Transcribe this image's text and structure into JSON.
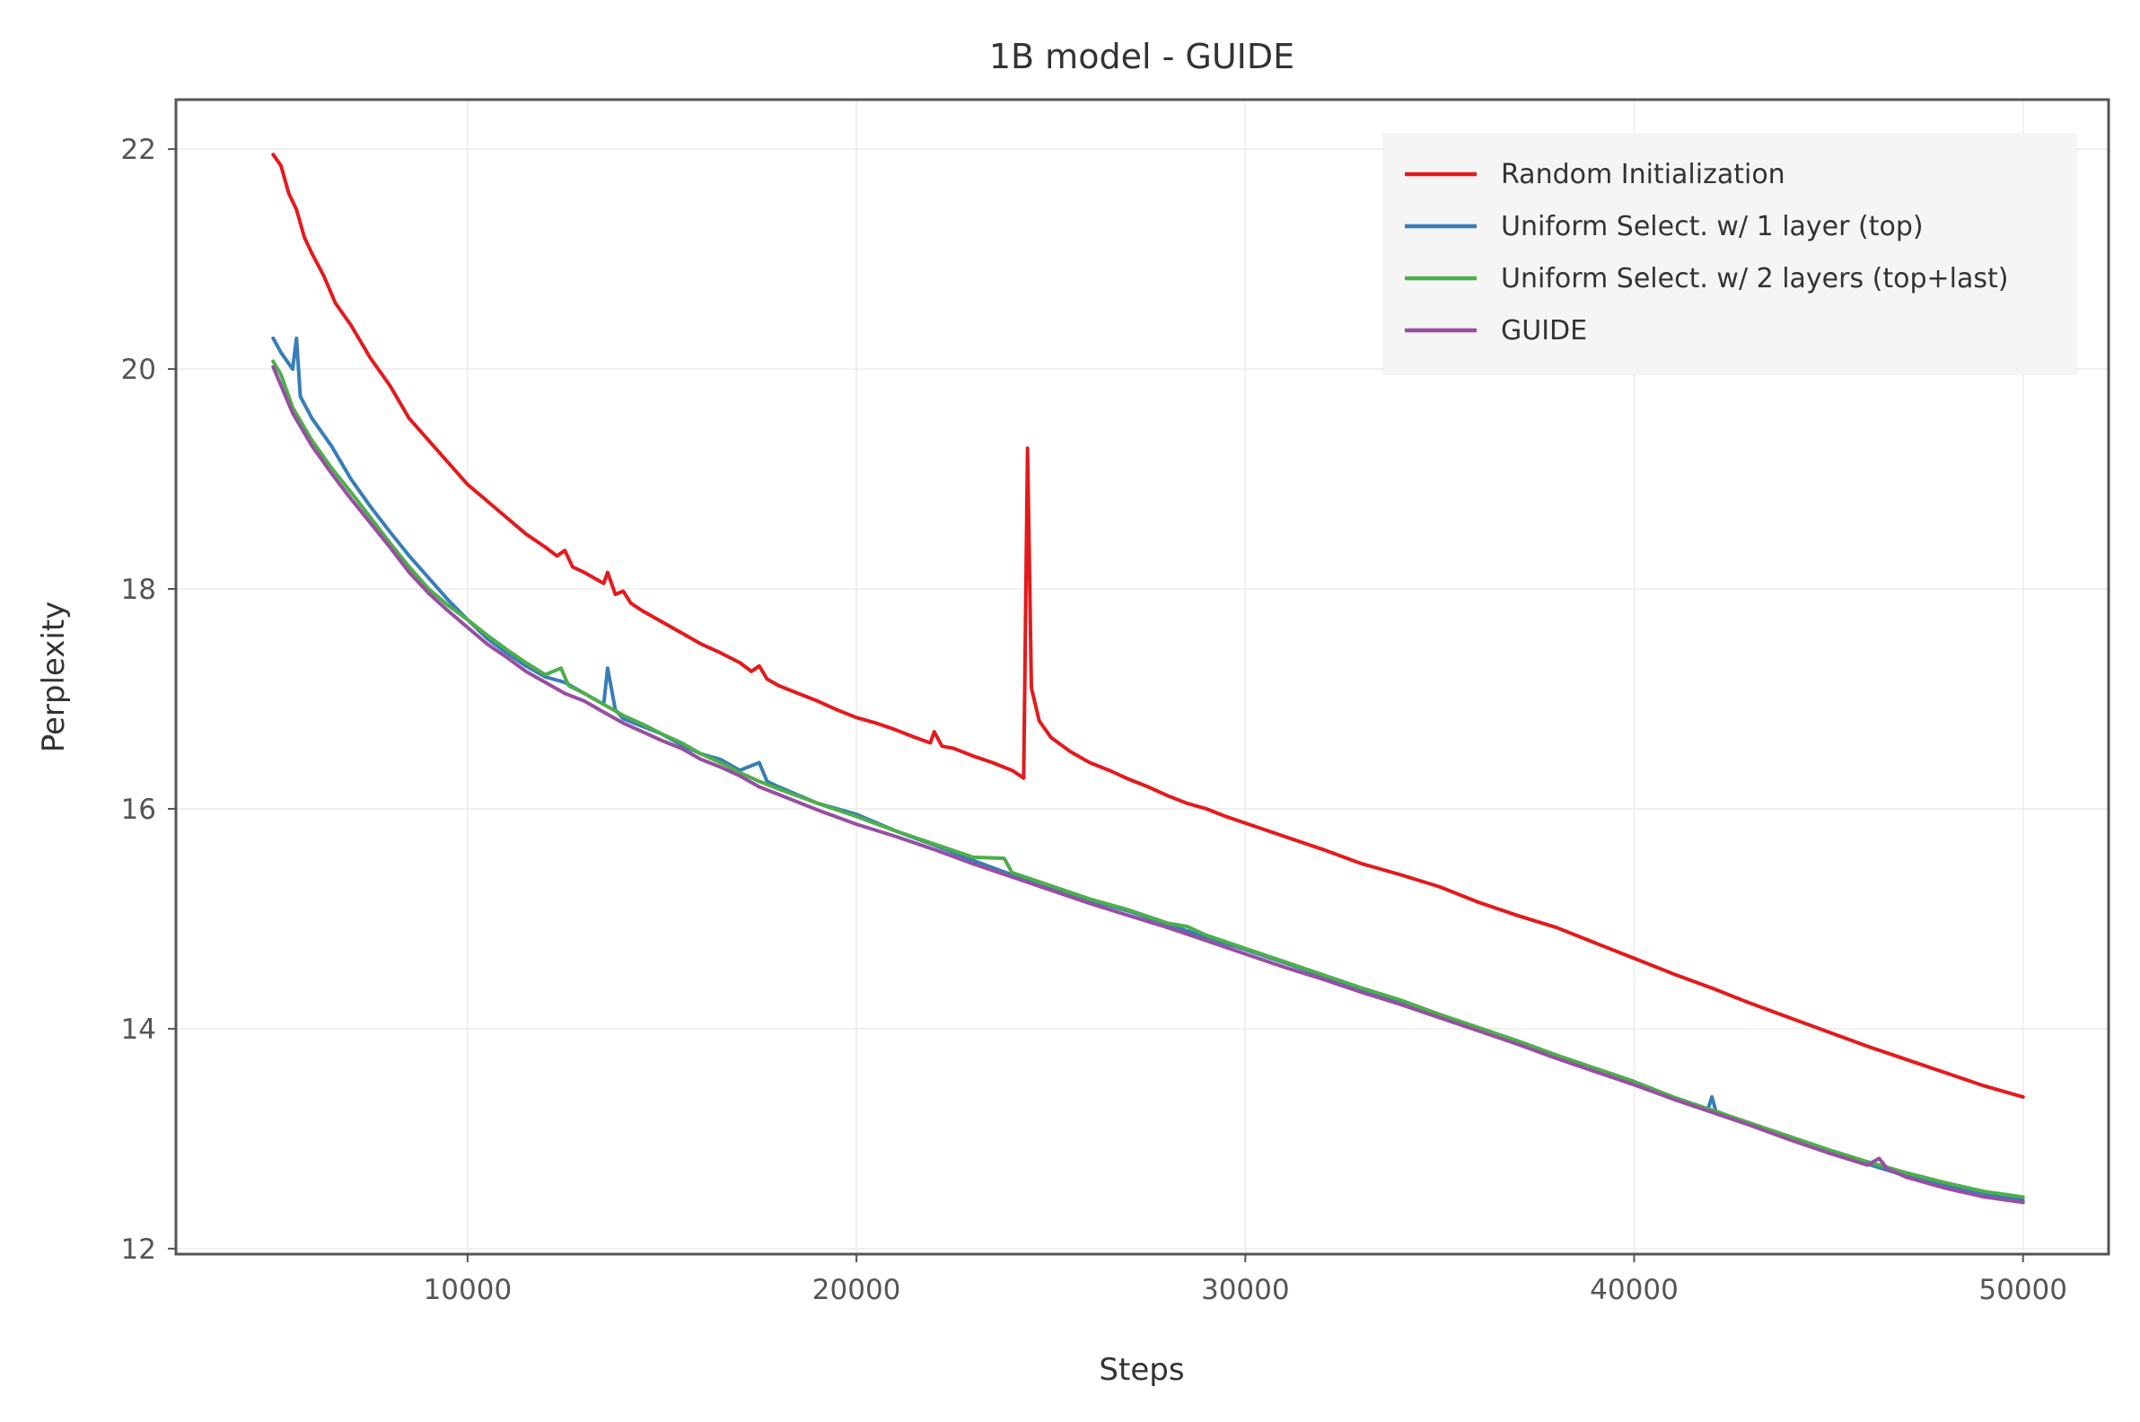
{
  "chart_data": {
    "type": "line",
    "title": "1B model - GUIDE",
    "xlabel": "Steps",
    "ylabel": "Perplexity",
    "xlim": [
      2500,
      52200
    ],
    "ylim": [
      11.95,
      22.45
    ],
    "xticks": [
      10000,
      20000,
      30000,
      40000,
      50000
    ],
    "yticks": [
      12,
      14,
      16,
      18,
      20,
      22
    ],
    "grid": true,
    "legend_position": "top-right",
    "series": [
      {
        "name": "Random Initialization",
        "color": "#e41a1c",
        "points": [
          [
            5000,
            21.95
          ],
          [
            5200,
            21.85
          ],
          [
            5400,
            21.6
          ],
          [
            5600,
            21.45
          ],
          [
            5800,
            21.2
          ],
          [
            6000,
            21.05
          ],
          [
            6300,
            20.85
          ],
          [
            6600,
            20.6
          ],
          [
            7000,
            20.4
          ],
          [
            7500,
            20.1
          ],
          [
            8000,
            19.85
          ],
          [
            8500,
            19.55
          ],
          [
            9000,
            19.35
          ],
          [
            9500,
            19.15
          ],
          [
            10000,
            18.95
          ],
          [
            10500,
            18.8
          ],
          [
            11000,
            18.65
          ],
          [
            11500,
            18.5
          ],
          [
            12000,
            18.38
          ],
          [
            12300,
            18.3
          ],
          [
            12500,
            18.35
          ],
          [
            12700,
            18.2
          ],
          [
            13000,
            18.15
          ],
          [
            13500,
            18.05
          ],
          [
            13600,
            18.15
          ],
          [
            13800,
            17.95
          ],
          [
            14000,
            17.98
          ],
          [
            14200,
            17.87
          ],
          [
            14500,
            17.8
          ],
          [
            15000,
            17.7
          ],
          [
            15500,
            17.6
          ],
          [
            16000,
            17.5
          ],
          [
            16500,
            17.42
          ],
          [
            17000,
            17.33
          ],
          [
            17300,
            17.25
          ],
          [
            17500,
            17.3
          ],
          [
            17700,
            17.18
          ],
          [
            18000,
            17.12
          ],
          [
            18500,
            17.05
          ],
          [
            19000,
            16.98
          ],
          [
            19500,
            16.9
          ],
          [
            20000,
            16.83
          ],
          [
            20500,
            16.78
          ],
          [
            21000,
            16.72
          ],
          [
            21500,
            16.65
          ],
          [
            21900,
            16.6
          ],
          [
            22000,
            16.7
          ],
          [
            22200,
            16.57
          ],
          [
            22500,
            16.55
          ],
          [
            23000,
            16.48
          ],
          [
            23500,
            16.42
          ],
          [
            24000,
            16.35
          ],
          [
            24300,
            16.28
          ],
          [
            24400,
            19.28
          ],
          [
            24500,
            17.1
          ],
          [
            24700,
            16.8
          ],
          [
            25000,
            16.65
          ],
          [
            25500,
            16.52
          ],
          [
            26000,
            16.42
          ],
          [
            26500,
            16.35
          ],
          [
            27000,
            16.27
          ],
          [
            27500,
            16.2
          ],
          [
            28000,
            16.12
          ],
          [
            28500,
            16.05
          ],
          [
            29000,
            16.0
          ],
          [
            29500,
            15.93
          ],
          [
            30000,
            15.87
          ],
          [
            31000,
            15.75
          ],
          [
            32000,
            15.63
          ],
          [
            33000,
            15.5
          ],
          [
            34000,
            15.4
          ],
          [
            35000,
            15.29
          ],
          [
            36000,
            15.15
          ],
          [
            37000,
            15.03
          ],
          [
            38000,
            14.92
          ],
          [
            39000,
            14.78
          ],
          [
            40000,
            14.64
          ],
          [
            41000,
            14.5
          ],
          [
            42000,
            14.37
          ],
          [
            43000,
            14.23
          ],
          [
            44000,
            14.1
          ],
          [
            45000,
            13.97
          ],
          [
            46000,
            13.84
          ],
          [
            47000,
            13.72
          ],
          [
            48000,
            13.6
          ],
          [
            49000,
            13.48
          ],
          [
            50000,
            13.38
          ]
        ]
      },
      {
        "name": "Uniform Select. w/ 1 layer (top)",
        "color": "#377eb8",
        "points": [
          [
            5000,
            20.28
          ],
          [
            5200,
            20.15
          ],
          [
            5400,
            20.05
          ],
          [
            5500,
            20.0
          ],
          [
            5600,
            20.28
          ],
          [
            5700,
            19.75
          ],
          [
            6000,
            19.55
          ],
          [
            6500,
            19.3
          ],
          [
            7000,
            19.0
          ],
          [
            7500,
            18.75
          ],
          [
            8000,
            18.52
          ],
          [
            8500,
            18.3
          ],
          [
            9000,
            18.1
          ],
          [
            9500,
            17.9
          ],
          [
            10000,
            17.72
          ],
          [
            10500,
            17.55
          ],
          [
            11000,
            17.42
          ],
          [
            11500,
            17.3
          ],
          [
            12000,
            17.2
          ],
          [
            12500,
            17.15
          ],
          [
            13000,
            17.05
          ],
          [
            13500,
            16.95
          ],
          [
            13600,
            17.28
          ],
          [
            13800,
            16.9
          ],
          [
            14000,
            16.82
          ],
          [
            14500,
            16.75
          ],
          [
            15000,
            16.68
          ],
          [
            15500,
            16.58
          ],
          [
            16000,
            16.5
          ],
          [
            16500,
            16.45
          ],
          [
            17000,
            16.35
          ],
          [
            17500,
            16.42
          ],
          [
            17700,
            16.25
          ],
          [
            18000,
            16.2
          ],
          [
            19000,
            16.05
          ],
          [
            20000,
            15.95
          ],
          [
            21000,
            15.8
          ],
          [
            22000,
            15.67
          ],
          [
            23000,
            15.53
          ],
          [
            24000,
            15.4
          ],
          [
            25000,
            15.28
          ],
          [
            26000,
            15.17
          ],
          [
            27000,
            15.07
          ],
          [
            28000,
            14.95
          ],
          [
            29000,
            14.83
          ],
          [
            30000,
            14.72
          ],
          [
            31000,
            14.6
          ],
          [
            32000,
            14.48
          ],
          [
            33000,
            14.36
          ],
          [
            34000,
            14.25
          ],
          [
            35000,
            14.12
          ],
          [
            36000,
            14.0
          ],
          [
            37000,
            13.87
          ],
          [
            38000,
            13.74
          ],
          [
            39000,
            13.62
          ],
          [
            40000,
            13.5
          ],
          [
            41000,
            13.37
          ],
          [
            41900,
            13.27
          ],
          [
            42000,
            13.38
          ],
          [
            42100,
            13.25
          ],
          [
            43000,
            13.13
          ],
          [
            44000,
            13.0
          ],
          [
            45000,
            12.88
          ],
          [
            46000,
            12.77
          ],
          [
            47000,
            12.66
          ],
          [
            48000,
            12.57
          ],
          [
            49000,
            12.49
          ],
          [
            50000,
            12.44
          ]
        ]
      },
      {
        "name": "Uniform Select. w/ 2 layers (top+last)",
        "color": "#4daf4a",
        "points": [
          [
            5000,
            20.07
          ],
          [
            5200,
            19.95
          ],
          [
            5500,
            19.65
          ],
          [
            6000,
            19.35
          ],
          [
            6500,
            19.1
          ],
          [
            7000,
            18.88
          ],
          [
            7500,
            18.65
          ],
          [
            8000,
            18.42
          ],
          [
            8500,
            18.2
          ],
          [
            9000,
            18.0
          ],
          [
            9500,
            17.85
          ],
          [
            10000,
            17.72
          ],
          [
            10500,
            17.58
          ],
          [
            11000,
            17.45
          ],
          [
            11500,
            17.33
          ],
          [
            12000,
            17.22
          ],
          [
            12400,
            17.28
          ],
          [
            12600,
            17.12
          ],
          [
            13000,
            17.05
          ],
          [
            13500,
            16.95
          ],
          [
            14000,
            16.85
          ],
          [
            14500,
            16.77
          ],
          [
            15000,
            16.68
          ],
          [
            15500,
            16.6
          ],
          [
            16000,
            16.5
          ],
          [
            16500,
            16.42
          ],
          [
            17000,
            16.33
          ],
          [
            17500,
            16.25
          ],
          [
            18000,
            16.18
          ],
          [
            19000,
            16.05
          ],
          [
            20000,
            15.93
          ],
          [
            21000,
            15.8
          ],
          [
            22000,
            15.68
          ],
          [
            23000,
            15.56
          ],
          [
            23800,
            15.55
          ],
          [
            24000,
            15.42
          ],
          [
            25000,
            15.3
          ],
          [
            26000,
            15.18
          ],
          [
            27000,
            15.08
          ],
          [
            28000,
            14.96
          ],
          [
            28500,
            14.93
          ],
          [
            29000,
            14.85
          ],
          [
            30000,
            14.73
          ],
          [
            31000,
            14.61
          ],
          [
            32000,
            14.49
          ],
          [
            33000,
            14.37
          ],
          [
            34000,
            14.26
          ],
          [
            35000,
            14.13
          ],
          [
            36000,
            14.01
          ],
          [
            37000,
            13.89
          ],
          [
            38000,
            13.76
          ],
          [
            39000,
            13.64
          ],
          [
            40000,
            13.52
          ],
          [
            41000,
            13.38
          ],
          [
            42000,
            13.26
          ],
          [
            43000,
            13.14
          ],
          [
            44000,
            13.02
          ],
          [
            45000,
            12.9
          ],
          [
            46000,
            12.79
          ],
          [
            47000,
            12.69
          ],
          [
            48000,
            12.6
          ],
          [
            49000,
            12.52
          ],
          [
            50000,
            12.47
          ]
        ]
      },
      {
        "name": "GUIDE",
        "color": "#984ea3",
        "points": [
          [
            5000,
            20.02
          ],
          [
            5200,
            19.85
          ],
          [
            5500,
            19.6
          ],
          [
            6000,
            19.3
          ],
          [
            6500,
            19.05
          ],
          [
            7000,
            18.82
          ],
          [
            7500,
            18.6
          ],
          [
            8000,
            18.38
          ],
          [
            8500,
            18.15
          ],
          [
            9000,
            17.96
          ],
          [
            9500,
            17.8
          ],
          [
            10000,
            17.65
          ],
          [
            10500,
            17.5
          ],
          [
            11000,
            17.38
          ],
          [
            11500,
            17.25
          ],
          [
            12000,
            17.15
          ],
          [
            12500,
            17.05
          ],
          [
            13000,
            16.98
          ],
          [
            13500,
            16.88
          ],
          [
            14000,
            16.78
          ],
          [
            14500,
            16.7
          ],
          [
            15000,
            16.62
          ],
          [
            15500,
            16.55
          ],
          [
            16000,
            16.45
          ],
          [
            16500,
            16.38
          ],
          [
            17000,
            16.3
          ],
          [
            17500,
            16.2
          ],
          [
            18000,
            16.13
          ],
          [
            19000,
            15.99
          ],
          [
            20000,
            15.86
          ],
          [
            21000,
            15.75
          ],
          [
            22000,
            15.63
          ],
          [
            23000,
            15.5
          ],
          [
            24000,
            15.38
          ],
          [
            25000,
            15.26
          ],
          [
            26000,
            15.14
          ],
          [
            27000,
            15.03
          ],
          [
            28000,
            14.92
          ],
          [
            29000,
            14.8
          ],
          [
            30000,
            14.68
          ],
          [
            31000,
            14.56
          ],
          [
            32000,
            14.45
          ],
          [
            33000,
            14.33
          ],
          [
            34000,
            14.22
          ],
          [
            35000,
            14.1
          ],
          [
            36000,
            13.98
          ],
          [
            37000,
            13.86
          ],
          [
            38000,
            13.73
          ],
          [
            39000,
            13.61
          ],
          [
            40000,
            13.49
          ],
          [
            41000,
            13.36
          ],
          [
            42000,
            13.24
          ],
          [
            43000,
            13.12
          ],
          [
            44000,
            12.99
          ],
          [
            45000,
            12.87
          ],
          [
            46000,
            12.76
          ],
          [
            46300,
            12.82
          ],
          [
            46500,
            12.73
          ],
          [
            47000,
            12.65
          ],
          [
            48000,
            12.55
          ],
          [
            49000,
            12.47
          ],
          [
            50000,
            12.42
          ]
        ]
      }
    ]
  }
}
